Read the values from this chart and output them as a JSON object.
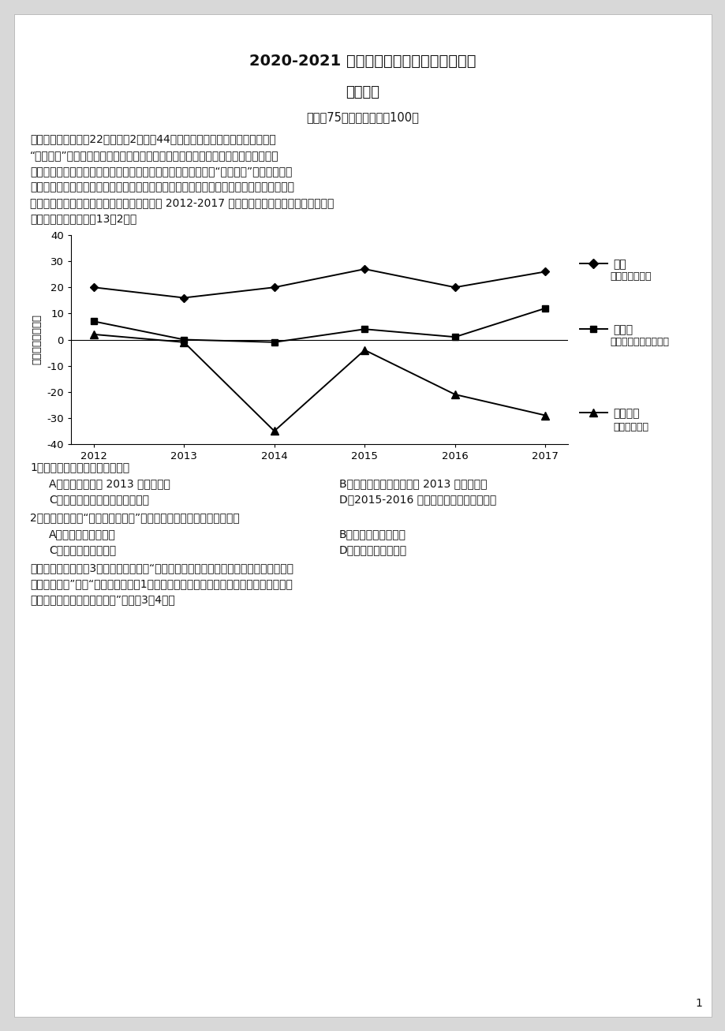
{
  "title1": "2020-2021 学年度春学期高二年级期中考试",
  "title2": "地理试卷",
  "time_score": "时长：75分钟　　总分：100分",
  "section1": "一、单项选择题：八22题，每题2分，全44分。每题只有一个选项最符合题意。",
  "para1_lines": [
    "“虹吸效应”是指区域的中心城市吸收了周边城市的各种资源，随着资源的聚集，中心",
    "城市的吸引力会越来越强，周边城市的人才会逐渐流失的现象。“外溢效应”是指中心城市",
    "受政策影响以及过度聚集的拥挤导致其技术、人才、产业、资金等向外围地区迁移，从而促",
    "使外围城市的经济发展的现象。下图为广东省 2012-2017 年户籍人口逐年净迁移人数（万人）",
    "变化曲线图，据此完成13～2题。"
  ],
  "chart_ylabel": "迁移人口（万人）",
  "chart_years": [
    2012,
    2013,
    2014,
    2015,
    2016,
    2017
  ],
  "series_suishen": [
    20,
    16,
    20,
    27,
    20,
    26
  ],
  "series_fohuiwan": [
    7,
    0,
    -1,
    4,
    1,
    12
  ],
  "series_guangdong": [
    2,
    -1,
    -35,
    -4,
    -21,
    -29
  ],
  "ylim": [
    -40,
    40
  ],
  "yticks": [
    -40,
    -30,
    -20,
    -10,
    0,
    10,
    20,
    30,
    40
  ],
  "legend1_line": "穗深",
  "legend1_sub": "（广州、深圳）",
  "legend2_line": "佛惠莎",
  "legend2_sub": "（佛山、惠州、东莎）",
  "legend3_line": "广东其余",
  "legend3_sub": "三、四线城市",
  "q1": "1．上图反映出人口迁移的变化是",
  "q1a": "A．穗深人口迁入 2013 年达最大值",
  "q1b": "B．三四线城市人口净迁出 2013 年达最大值",
  "q1c": "C．佛惠莎年人口迁入数持续上升",
  "q1d": "D．2015-2016 年佛惠莎人口变化幅度最大",
  "q2": "2．广州、深圳的“虹吸和外溢效应”引起的人口迁移，其带来的影响是",
  "q2a": "A．加快城市职能转变",
  "q2b": "B．加重城市社会负担",
  "q2c": "C．导致城市发展停滞",
  "q2d": "D．促进城市协同发展",
  "para2_lines": [
    "　　当美国人口突砃3亿之后，媒体指出“美国人口的快速增长对支撑地球生命的自然体系",
    "来说并非好事”。读“美国人口每增加1亿所用的时间示意图和美国人口数量及部分消费品",
    "消费总量占世界的比重示意图”，回哃3～4题。"
  ],
  "page_num": "1",
  "bg_color": "#d8d8d8"
}
